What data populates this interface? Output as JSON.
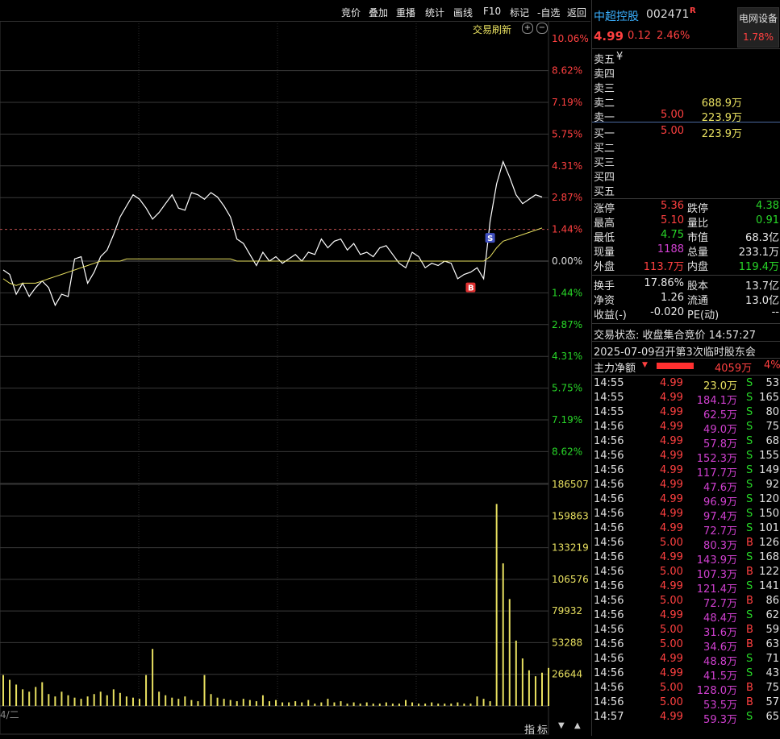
{
  "toolbar": {
    "items": [
      "竞价",
      "叠加",
      "重播",
      "统计",
      "画线",
      "F10",
      "标记",
      "-自选",
      "返回"
    ],
    "refresh_label": "交易刷新",
    "bottom_tabs": [
      "指",
      "标"
    ],
    "bottom_left_label": "4/二"
  },
  "chart_data": {
    "type": "line",
    "pct_ticks_up": [
      "10.06%",
      "8.62%",
      "7.19%",
      "5.75%",
      "4.31%",
      "2.87%",
      "1.44%"
    ],
    "zero_tick": "0.00%",
    "pct_ticks_down": [
      "1.44%",
      "2.87%",
      "4.31%",
      "5.75%",
      "7.19%",
      "8.62%"
    ],
    "volume_ticks": [
      "186507",
      "159863",
      "133219",
      "106576",
      "79932",
      "53288",
      "26644"
    ],
    "markers": {
      "buy": "B",
      "sell": "S"
    },
    "price_pct": [
      -0.4,
      -0.6,
      -1.5,
      -1.0,
      -1.6,
      -1.2,
      -0.9,
      -1.2,
      -2.0,
      -1.5,
      -1.6,
      0.1,
      0.2,
      -1.0,
      -0.5,
      0.2,
      0.5,
      1.2,
      2.0,
      2.5,
      3.0,
      2.8,
      2.4,
      1.9,
      2.2,
      2.6,
      3.0,
      2.4,
      2.3,
      3.1,
      3.0,
      2.8,
      3.1,
      2.9,
      2.5,
      2.0,
      1.0,
      0.8,
      0.3,
      -0.2,
      0.4,
      0.0,
      0.2,
      -0.1,
      0.1,
      0.3,
      0.0,
      0.4,
      0.3,
      1.0,
      0.6,
      0.9,
      1.0,
      0.5,
      0.8,
      0.3,
      0.4,
      0.2,
      0.6,
      0.7,
      0.3,
      -0.1,
      -0.3,
      0.4,
      0.2,
      -0.3,
      -0.1,
      -0.2,
      0.0,
      -0.1,
      -0.8,
      -0.6,
      -0.5,
      -0.3,
      -0.8,
      1.8,
      3.5,
      4.5,
      3.8,
      3.0,
      2.6,
      2.8,
      3.0,
      2.9
    ],
    "avg_pct": [
      -0.8,
      -1.0,
      -1.1,
      -1.0,
      -1.0,
      -1.0,
      -0.9,
      -0.8,
      -0.7,
      -0.6,
      -0.5,
      -0.4,
      -0.3,
      -0.2,
      -0.1,
      0.0,
      0.0,
      0.0,
      0.0,
      0.1,
      0.1,
      0.1,
      0.1,
      0.1,
      0.1,
      0.1,
      0.1,
      0.1,
      0.1,
      0.1,
      0.1,
      0.1,
      0.1,
      0.1,
      0.1,
      0.1,
      0.0,
      0.0,
      0.0,
      0.0,
      0.0,
      0.0,
      0.0,
      0.0,
      0.0,
      0.0,
      0.0,
      0.0,
      0.0,
      0.0,
      0.0,
      0.0,
      0.0,
      0.0,
      0.0,
      0.0,
      0.0,
      0.0,
      0.0,
      0.0,
      0.0,
      0.0,
      0.0,
      0.0,
      0.0,
      0.0,
      0.0,
      0.0,
      0.0,
      0.0,
      0.0,
      0.0,
      0.0,
      0.0,
      0.0,
      0.2,
      0.6,
      0.9,
      1.0,
      1.1,
      1.2,
      1.3,
      1.4,
      1.5
    ],
    "volume": [
      26000,
      22000,
      18000,
      14000,
      12000,
      16000,
      20000,
      10000,
      8000,
      12000,
      9000,
      7000,
      6000,
      8000,
      10000,
      12000,
      9000,
      14000,
      11000,
      8000,
      7000,
      6000,
      26000,
      48000,
      12000,
      9000,
      7000,
      6000,
      8000,
      5000,
      4000,
      26000,
      10000,
      7000,
      6000,
      5000,
      4000,
      6000,
      5000,
      4000,
      9000,
      4000,
      5000,
      3000,
      3000,
      4000,
      3000,
      5000,
      2000,
      3000,
      6000,
      3000,
      4000,
      2000,
      3000,
      2000,
      3000,
      2000,
      2000,
      3000,
      2000,
      2000,
      5000,
      3000,
      2000,
      2000,
      3000,
      2000,
      2000,
      2000,
      3000,
      2000,
      2000,
      8000,
      6000,
      4000,
      170000,
      120000,
      90000,
      55000,
      40000,
      30000,
      25000,
      28000,
      32000
    ]
  },
  "quote": {
    "name": "中超控股",
    "code": "002471",
    "flag": "R",
    "price": "4.99",
    "change": "0.12",
    "change_pct": "2.46%",
    "sector_name": "电网设备",
    "sector_pct": "1.78%"
  },
  "orderbook": {
    "sells": [
      {
        "label": "卖五",
        "price": "¥",
        "vol": ""
      },
      {
        "label": "卖四",
        "price": "",
        "vol": ""
      },
      {
        "label": "卖三",
        "price": "",
        "vol": ""
      },
      {
        "label": "卖二",
        "price": "",
        "vol": "688.9万"
      },
      {
        "label": "卖一",
        "price": "5.00",
        "vol": "223.9万"
      }
    ],
    "buys": [
      {
        "label": "买一",
        "price": "5.00",
        "vol": "223.9万"
      },
      {
        "label": "买二",
        "price": "",
        "vol": ""
      },
      {
        "label": "买三",
        "price": "",
        "vol": ""
      },
      {
        "label": "买四",
        "price": "",
        "vol": ""
      },
      {
        "label": "买五",
        "price": "",
        "vol": ""
      }
    ]
  },
  "stats": [
    {
      "l1": "涨停",
      "v1": "5.36",
      "c1": "red",
      "l2": "跌停",
      "v2": "4.38",
      "c2": "green"
    },
    {
      "l1": "最高",
      "v1": "5.10",
      "c1": "red",
      "l2": "量比",
      "v2": "0.91",
      "c2": "green"
    },
    {
      "l1": "最低",
      "v1": "4.75",
      "c1": "green",
      "l2": "市值",
      "v2": "68.3亿",
      "c2": "white"
    },
    {
      "l1": "现量",
      "v1": "1188",
      "c1": "magenta",
      "l2": "总量",
      "v2": "233.1万",
      "c2": "white"
    },
    {
      "l1": "外盘",
      "v1": "113.7万",
      "c1": "red",
      "l2": "内盘",
      "v2": "119.4万",
      "c2": "green"
    }
  ],
  "stats2": [
    {
      "l1": "换手",
      "v1": "17.86%",
      "l2": "股本",
      "v2": "13.7亿"
    },
    {
      "l1": "净资",
      "v1": "1.26",
      "l2": "流通",
      "v2": "13.0亿"
    },
    {
      "l1": "收益(-)",
      "v1": "-0.020",
      "l2": "PE(动)",
      "v2": "--"
    }
  ],
  "status": {
    "trade_state": "交易状态: 收盘集合竞价 14:57:27",
    "notice": "2025-07-09召开第3次临时股东会",
    "main_net_label": "主力净额",
    "main_net_value": "4059万",
    "main_net_pct": "4%"
  },
  "ticks": [
    {
      "t": "14:55",
      "p": "4.99",
      "v": "23.0万",
      "s": "S",
      "n": "53",
      "vc": "yellow"
    },
    {
      "t": "14:55",
      "p": "4.99",
      "v": "184.1万",
      "s": "S",
      "n": "165",
      "vc": "magenta"
    },
    {
      "t": "14:55",
      "p": "4.99",
      "v": "62.5万",
      "s": "S",
      "n": "80",
      "vc": "magenta"
    },
    {
      "t": "14:56",
      "p": "4.99",
      "v": "49.0万",
      "s": "S",
      "n": "75",
      "vc": "magenta"
    },
    {
      "t": "14:56",
      "p": "4.99",
      "v": "57.8万",
      "s": "S",
      "n": "68",
      "vc": "magenta"
    },
    {
      "t": "14:56",
      "p": "4.99",
      "v": "152.3万",
      "s": "S",
      "n": "155",
      "vc": "magenta"
    },
    {
      "t": "14:56",
      "p": "4.99",
      "v": "117.7万",
      "s": "S",
      "n": "149",
      "vc": "magenta"
    },
    {
      "t": "14:56",
      "p": "4.99",
      "v": "47.6万",
      "s": "S",
      "n": "92",
      "vc": "magenta"
    },
    {
      "t": "14:56",
      "p": "4.99",
      "v": "96.9万",
      "s": "S",
      "n": "120",
      "vc": "magenta"
    },
    {
      "t": "14:56",
      "p": "4.99",
      "v": "97.4万",
      "s": "S",
      "n": "150",
      "vc": "magenta"
    },
    {
      "t": "14:56",
      "p": "4.99",
      "v": "72.7万",
      "s": "S",
      "n": "101",
      "vc": "magenta"
    },
    {
      "t": "14:56",
      "p": "5.00",
      "v": "80.3万",
      "s": "B",
      "n": "126",
      "vc": "magenta"
    },
    {
      "t": "14:56",
      "p": "4.99",
      "v": "143.9万",
      "s": "S",
      "n": "168",
      "vc": "magenta"
    },
    {
      "t": "14:56",
      "p": "5.00",
      "v": "107.3万",
      "s": "B",
      "n": "122",
      "vc": "magenta"
    },
    {
      "t": "14:56",
      "p": "4.99",
      "v": "121.4万",
      "s": "S",
      "n": "141",
      "vc": "magenta"
    },
    {
      "t": "14:56",
      "p": "5.00",
      "v": "72.7万",
      "s": "B",
      "n": "86",
      "vc": "magenta"
    },
    {
      "t": "14:56",
      "p": "4.99",
      "v": "48.4万",
      "s": "S",
      "n": "62",
      "vc": "magenta"
    },
    {
      "t": "14:56",
      "p": "5.00",
      "v": "31.6万",
      "s": "B",
      "n": "59",
      "vc": "magenta"
    },
    {
      "t": "14:56",
      "p": "5.00",
      "v": "34.6万",
      "s": "B",
      "n": "63",
      "vc": "magenta"
    },
    {
      "t": "14:56",
      "p": "4.99",
      "v": "48.8万",
      "s": "S",
      "n": "71",
      "vc": "magenta"
    },
    {
      "t": "14:56",
      "p": "4.99",
      "v": "41.5万",
      "s": "S",
      "n": "43",
      "vc": "magenta"
    },
    {
      "t": "14:56",
      "p": "5.00",
      "v": "128.0万",
      "s": "B",
      "n": "75",
      "vc": "magenta"
    },
    {
      "t": "14:56",
      "p": "5.00",
      "v": "53.5万",
      "s": "B",
      "n": "57",
      "vc": "magenta"
    },
    {
      "t": "14:57",
      "p": "4.99",
      "v": "59.3万",
      "s": "S",
      "n": "65",
      "vc": "magenta"
    }
  ],
  "colors": {
    "up": "#ff4040",
    "down": "#28d728",
    "avg": "#e8e060",
    "price": "#ffffff",
    "grid": "#3a3a3a"
  }
}
